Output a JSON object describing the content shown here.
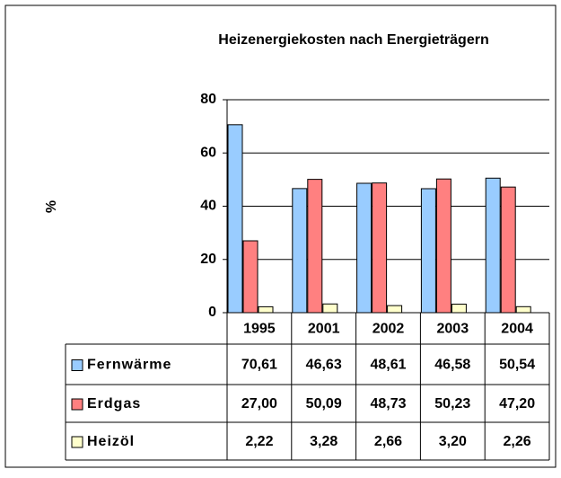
{
  "chart_data": {
    "type": "bar",
    "title": "Heizenergiekosten nach Energieträgern",
    "ylabel": "%",
    "categories": [
      "1995",
      "2001",
      "2002",
      "2003",
      "2004"
    ],
    "series": [
      {
        "name": "Fernwärme",
        "color": "#99ccff",
        "values": [
          70.61,
          46.63,
          48.61,
          46.58,
          50.54
        ],
        "value_labels": [
          "70,61",
          "46,63",
          "48,61",
          "46,58",
          "50,54"
        ]
      },
      {
        "name": "Erdgas",
        "color": "#ff8080",
        "values": [
          27.0,
          50.09,
          48.73,
          50.23,
          47.2
        ],
        "value_labels": [
          "27,00",
          "50,09",
          "48,73",
          "50,23",
          "47,20"
        ]
      },
      {
        "name": "Heizöl",
        "color": "#ffffcc",
        "values": [
          2.22,
          3.28,
          2.66,
          3.2,
          2.26
        ],
        "value_labels": [
          "2,22",
          "3,28",
          "2,66",
          "3,20",
          "2,26"
        ]
      }
    ],
    "ylim": [
      0,
      80
    ],
    "yticks": [
      0,
      20,
      40,
      60,
      80
    ],
    "grid": true
  }
}
